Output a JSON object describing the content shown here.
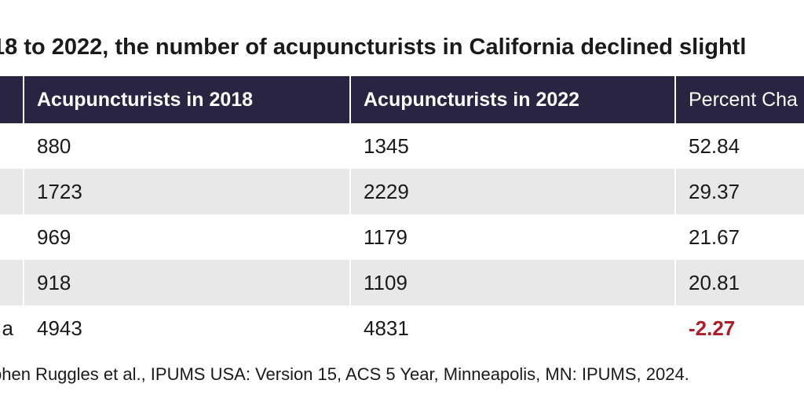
{
  "title": "18 to 2022, the number of acupuncturists in California declined slightl",
  "chart_data": {
    "type": "table",
    "columns": [
      "",
      "Acupuncturists in 2018",
      "Acupuncturists in 2022",
      "Percent Cha"
    ],
    "rows": [
      {
        "state": "",
        "y2018": "880",
        "y2022": "1345",
        "pct": "52.84"
      },
      {
        "state": "",
        "y2018": "1723",
        "y2022": "2229",
        "pct": "29.37"
      },
      {
        "state": "",
        "y2018": "969",
        "y2022": "1179",
        "pct": "21.67"
      },
      {
        "state": "",
        "y2018": "918",
        "y2022": "1109",
        "pct": "20.81"
      },
      {
        "state": "a",
        "y2018": "4943",
        "y2022": "4831",
        "pct": "-2.27"
      }
    ],
    "negative_color": "#b01c26",
    "header_color": "#282441",
    "stripe_color": "#e8e8e8"
  },
  "source": "phen Ruggles et al., IPUMS USA: Version 15, ACS 5 Year, Minneapolis, MN: IPUMS, 2024."
}
